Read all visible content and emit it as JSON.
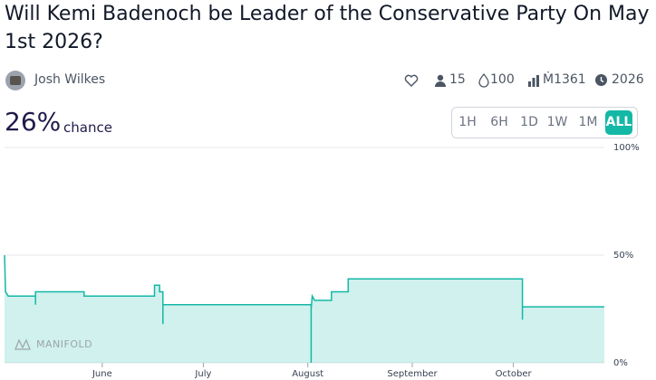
{
  "header": {
    "title": "Will Kemi Badenoch be Leader of the Conservative Party On May 1st 2026?",
    "author": "Josh Wilkes",
    "traders": "15",
    "liquidity": "100",
    "volume": "Ṁ1361",
    "close_year": "2026"
  },
  "probability": "26%",
  "probability_label": "chance",
  "time_ranges": [
    "1H",
    "6H",
    "1D",
    "1W",
    "1M",
    "ALL"
  ],
  "watermark": "MANIFOLD",
  "chart_data": {
    "type": "line",
    "color": "#14b8a6",
    "x": [
      -29,
      -28.7,
      -27.9,
      -19.8,
      -19.8,
      -19.8,
      -5.4,
      -5.4,
      15.5,
      15.5,
      17,
      17,
      18,
      18,
      18,
      62,
      62,
      62,
      62.3,
      63,
      68,
      68,
      73,
      73,
      124.7,
      124.7,
      124.7,
      149
    ],
    "values": [
      50,
      33,
      31,
      31,
      27,
      33,
      33,
      31,
      31,
      36,
      36,
      33,
      33,
      18,
      27,
      27,
      0,
      25,
      31,
      29,
      29,
      33,
      33,
      39,
      39,
      20,
      26,
      26
    ],
    "xlim": [
      -29,
      149
    ],
    "xticks": [
      {
        "value": 0,
        "label": "June"
      },
      {
        "value": 30,
        "label": "July"
      },
      {
        "value": 61,
        "label": "August"
      },
      {
        "value": 92,
        "label": "September"
      },
      {
        "value": 122,
        "label": "October"
      }
    ],
    "ylim": [
      0,
      100
    ],
    "yticks": [
      {
        "value": 0,
        "label": "0%"
      },
      {
        "value": 50,
        "label": "50%"
      },
      {
        "value": 100,
        "label": "100%"
      }
    ],
    "grid": true
  }
}
